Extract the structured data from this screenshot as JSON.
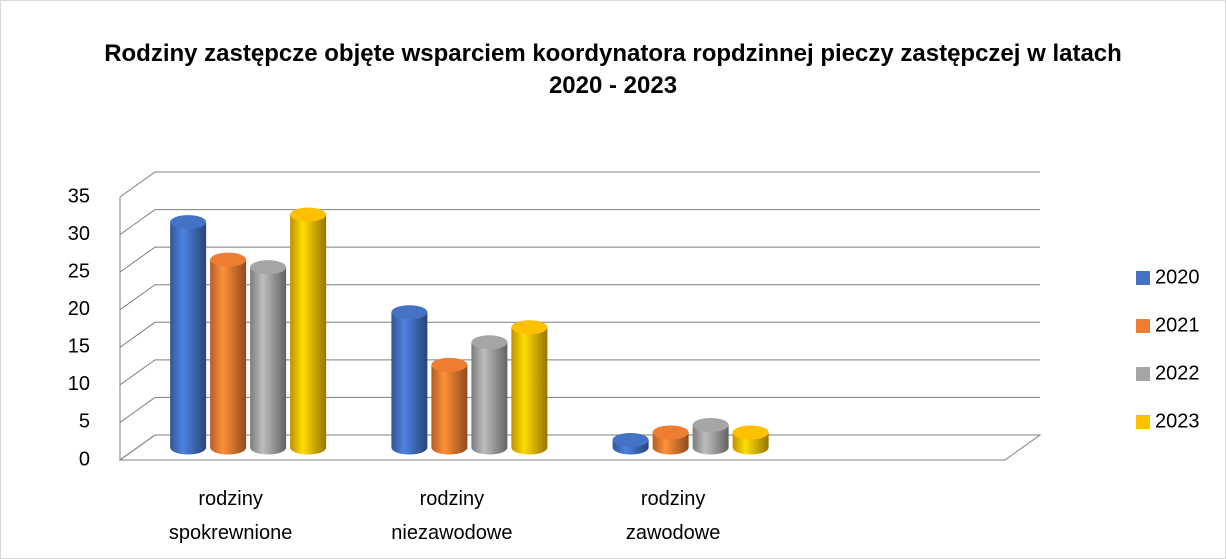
{
  "chart_data": {
    "type": "bar3d",
    "title": "Rodziny zastępcze objęte wsparciem koordynatora ropdzinnej pieczy zastępczej  w latach 2020 - 2023",
    "categories": [
      "rodziny\nspokrewnione",
      "rodziny\nniezawodowe",
      "rodziny\nzawodowe"
    ],
    "series": [
      {
        "name": "2020",
        "color": "#4472c4",
        "values": [
          30,
          18,
          1
        ]
      },
      {
        "name": "2021",
        "color": "#ed7d31",
        "values": [
          25,
          11,
          2
        ]
      },
      {
        "name": "2022",
        "color": "#a5a5a5",
        "values": [
          24,
          14,
          3
        ]
      },
      {
        "name": "2023",
        "color": "#ffc000",
        "values": [
          31,
          16,
          2
        ]
      }
    ],
    "ylim": [
      0,
      35
    ],
    "yticks": [
      0,
      5,
      10,
      15,
      20,
      25,
      30,
      35
    ],
    "grid": true,
    "legend": "right"
  }
}
